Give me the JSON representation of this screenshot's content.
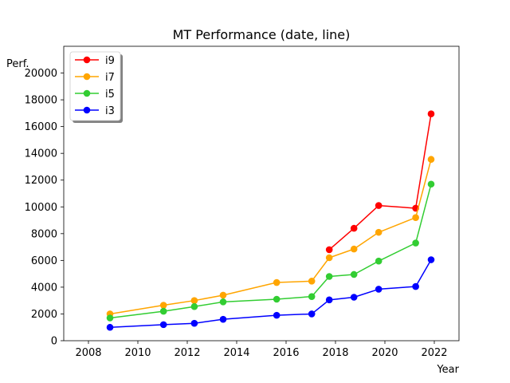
{
  "chart_data": {
    "type": "line",
    "title": "MT Performance (date, line)",
    "xlabel": "Year",
    "ylabel": "Perf.",
    "xlim": [
      "2007-01-01",
      "2023-01-01"
    ],
    "ylim": [
      0,
      22000
    ],
    "xticks": [
      {
        "date": "2008-01-01",
        "label": "2008"
      },
      {
        "date": "2010-01-01",
        "label": "2010"
      },
      {
        "date": "2012-01-01",
        "label": "2012"
      },
      {
        "date": "2014-01-01",
        "label": "2014"
      },
      {
        "date": "2016-01-01",
        "label": "2016"
      },
      {
        "date": "2018-01-01",
        "label": "2018"
      },
      {
        "date": "2020-01-01",
        "label": "2020"
      },
      {
        "date": "2022-01-01",
        "label": "2022"
      }
    ],
    "yticks": [
      {
        "value": 0,
        "label": "0"
      },
      {
        "value": 2000,
        "label": "2000"
      },
      {
        "value": 4000,
        "label": "4000"
      },
      {
        "value": 6000,
        "label": "6000"
      },
      {
        "value": 8000,
        "label": "8000"
      },
      {
        "value": 10000,
        "label": "10000"
      },
      {
        "value": 12000,
        "label": "12000"
      },
      {
        "value": 14000,
        "label": "14000"
      },
      {
        "value": 16000,
        "label": "16000"
      },
      {
        "value": 18000,
        "label": "18000"
      },
      {
        "value": 20000,
        "label": "20000"
      }
    ],
    "grid": false,
    "legend_position": "top-left",
    "series": [
      {
        "name": "i9",
        "color": "#ff0000",
        "x": [
          "2017-10-01",
          "2018-10-01",
          "2019-10-01",
          "2021-04-01",
          "2021-11-15"
        ],
        "values": [
          6800,
          8400,
          10100,
          9900,
          16950
        ]
      },
      {
        "name": "i7",
        "color": "#ffa500",
        "x": [
          "2008-11-15",
          "2011-01-15",
          "2012-04-15",
          "2013-06-15",
          "2015-08-15",
          "2017-01-15",
          "2017-10-01",
          "2018-10-01",
          "2019-10-01",
          "2021-04-01",
          "2021-11-15"
        ],
        "values": [
          2000,
          2650,
          3000,
          3400,
          4350,
          4450,
          6200,
          6850,
          8100,
          9200,
          13550
        ]
      },
      {
        "name": "i5",
        "color": "#32cd32",
        "x": [
          "2008-11-15",
          "2011-01-15",
          "2012-04-15",
          "2013-06-15",
          "2015-08-15",
          "2017-01-15",
          "2017-10-01",
          "2018-10-01",
          "2019-10-01",
          "2021-04-01",
          "2021-11-15"
        ],
        "values": [
          1700,
          2200,
          2550,
          2900,
          3100,
          3300,
          4800,
          4950,
          5950,
          7300,
          11700
        ]
      },
      {
        "name": "i3",
        "color": "#0000ff",
        "x": [
          "2008-11-15",
          "2011-01-15",
          "2012-04-15",
          "2013-06-15",
          "2015-08-15",
          "2017-01-15",
          "2017-10-01",
          "2018-10-01",
          "2019-10-01",
          "2021-04-01",
          "2021-11-15"
        ],
        "values": [
          1000,
          1200,
          1300,
          1600,
          1900,
          2000,
          3050,
          3250,
          3850,
          4050,
          6050
        ]
      }
    ]
  }
}
